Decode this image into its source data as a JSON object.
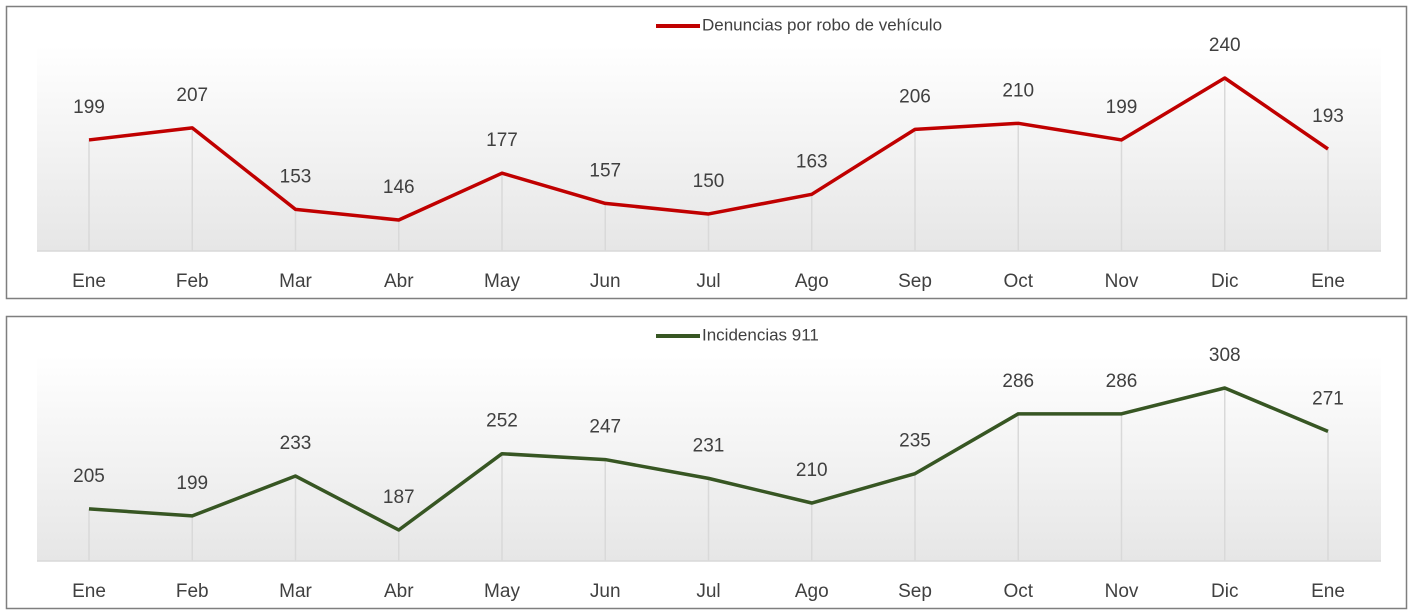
{
  "chart_data": [
    {
      "type": "line",
      "categories": [
        "Ene",
        "Feb",
        "Mar",
        "Abr",
        "May",
        "Jun",
        "Jul",
        "Ago",
        "Sep",
        "Oct",
        "Nov",
        "Dic",
        "Ene"
      ],
      "series": [
        {
          "name": "Denuncias por robo de vehículo",
          "color": "#c00000",
          "values": [
            199,
            207,
            153,
            146,
            177,
            157,
            150,
            163,
            206,
            210,
            199,
            240,
            193
          ]
        }
      ]
    },
    {
      "type": "line",
      "categories": [
        "Ene",
        "Feb",
        "Mar",
        "Abr",
        "May",
        "Jun",
        "Jul",
        "Ago",
        "Sep",
        "Oct",
        "Nov",
        "Dic",
        "Ene"
      ],
      "series": [
        {
          "name": "Incidencias 911",
          "color": "#375623",
          "values": [
            205,
            199,
            233,
            187,
            252,
            247,
            231,
            210,
            235,
            286,
            286,
            308,
            271
          ]
        }
      ]
    }
  ]
}
